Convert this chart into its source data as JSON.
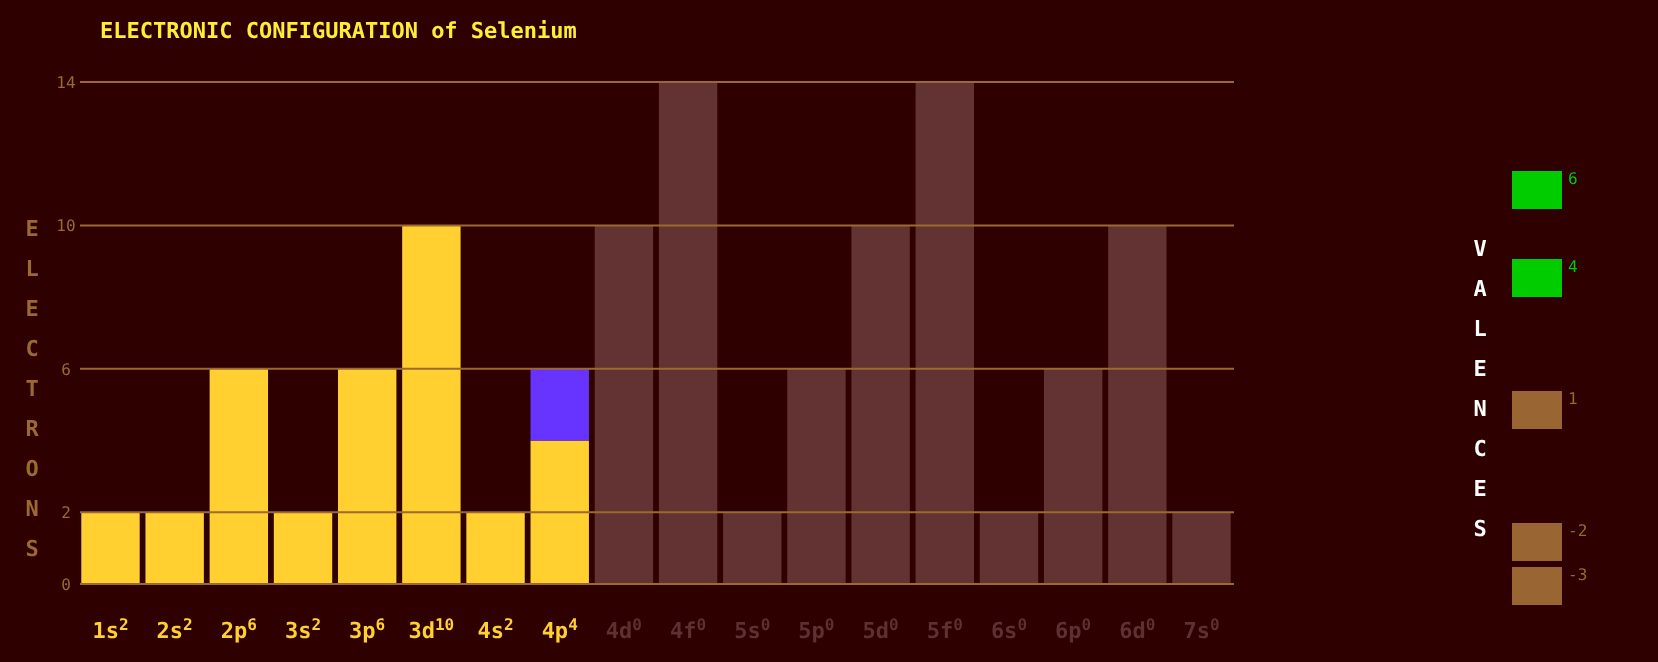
{
  "chart_data": [
    {
      "type": "bar",
      "title": "ELECTRONIC CONFIGURATION of Selenium",
      "ylabel": "ELECTRONS",
      "stacked": true,
      "grid": "y",
      "ylim": [
        0,
        14
      ],
      "yticks": [
        0,
        2,
        6,
        10,
        14
      ],
      "categories": [
        "1s$^{2}$",
        "2s$^{2}$",
        "2p$^{6}$",
        "3s$^{2}$",
        "3p$^{6}$",
        "3d$^{10}$",
        "4s$^{2}$",
        "4p$^{4}$",
        "4d$^{0}$",
        "4f$^{0}$",
        "5s$^{0}$",
        "5p$^{0}$",
        "5d$^{0}$",
        "5f$^{0}$",
        "6s$^{0}$",
        "6p$^{0}$",
        "6d$^{0}$",
        "7s$^{0}$"
      ],
      "series": [
        {
          "color": "#ffd030",
          "values": [
            2,
            2,
            6,
            2,
            6,
            10,
            2,
            4,
            0,
            0,
            0,
            0,
            0,
            0,
            0,
            0,
            0,
            0
          ]
        },
        {
          "color": "#6633ff",
          "values": [
            0,
            0,
            0,
            0,
            0,
            0,
            0,
            2,
            0,
            0,
            0,
            0,
            0,
            0,
            0,
            0,
            0,
            0
          ]
        },
        {
          "color": "#633232",
          "values": [
            0,
            0,
            0,
            0,
            0,
            0,
            0,
            0,
            10,
            14,
            2,
            6,
            10,
            14,
            2,
            6,
            10,
            2
          ]
        }
      ]
    },
    {
      "type": "other",
      "title": "VALENCES",
      "values": [
        6,
        4,
        1,
        -2,
        -3
      ],
      "value_labels": [
        "6",
        "4",
        "1",
        "-2",
        "-3"
      ],
      "colors": [
        "#00cc00",
        "#00cc00",
        "#996633",
        "#996633",
        "#996633"
      ]
    }
  ]
}
